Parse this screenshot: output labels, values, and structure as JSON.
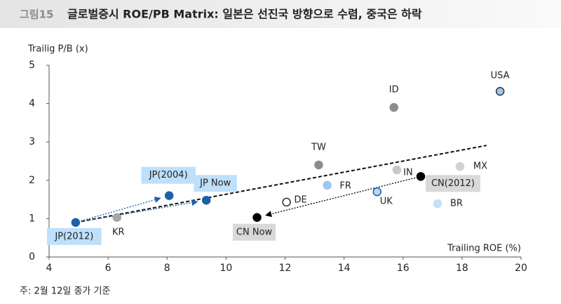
{
  "chart_data": {
    "type": "scatter",
    "figure_label": "그림15",
    "title": "글로벌증시 ROE/PB Matrix: 일본은 선진국 방향으로 수렴, 중국은 하락",
    "y_label": "Trailig P/B (x)",
    "x_label": "Trailing ROE (%)",
    "note": "주: 2월 12일 종가 기준",
    "labels": [
      "JP(2012)",
      "JP(2004)",
      "JP Now",
      "KR",
      "CN Now",
      "DE",
      "TW",
      "FR",
      "ID",
      "IN",
      "UK",
      "CN(2012)",
      "BR",
      "MX",
      "USA"
    ],
    "x": [
      4.9,
      8.07,
      9.33,
      6.3,
      11.05,
      12.05,
      13.14,
      13.43,
      15.69,
      15.79,
      15.12,
      16.6,
      17.17,
      17.93,
      19.29
    ],
    "values": [
      0.9,
      1.6,
      1.48,
      1.03,
      1.03,
      1.43,
      2.4,
      1.87,
      3.9,
      2.27,
      1.7,
      2.1,
      1.39,
      2.36,
      4.32
    ],
    "colors": [
      "#1f5fa8",
      "#1f5fa8",
      "#1f5fa8",
      "#a6a6a6",
      "#000000",
      "#ffffff",
      "#8c8c8c",
      "#9cc8f0",
      "#8c8c8c",
      "#c8c8c8",
      "#b4d8f6",
      "#000000",
      "#c4e0fa",
      "#d2d2d2",
      "#9cc8f0"
    ],
    "edgecolors": [
      "#1f5fa8",
      "#1f5fa8",
      "#1f5fa8",
      "#a6a6a6",
      "#000000",
      "#333333",
      "#8c8c8c",
      "#9cc8f0",
      "#8c8c8c",
      "#c8c8c8",
      "#1f5fa8",
      "#000000",
      "#c4e0fa",
      "#d2d2d2",
      "#333333"
    ],
    "trendline": {
      "x": [
        4.9,
        18.83
      ],
      "values": [
        0.9,
        2.91
      ]
    },
    "xlim": [
      4,
      20
    ],
    "xticks": [
      4,
      6,
      8,
      10,
      12,
      14,
      16,
      18,
      20
    ],
    "ylim": [
      0,
      5
    ],
    "yticks": [
      0,
      1,
      2,
      3,
      4,
      5
    ]
  }
}
